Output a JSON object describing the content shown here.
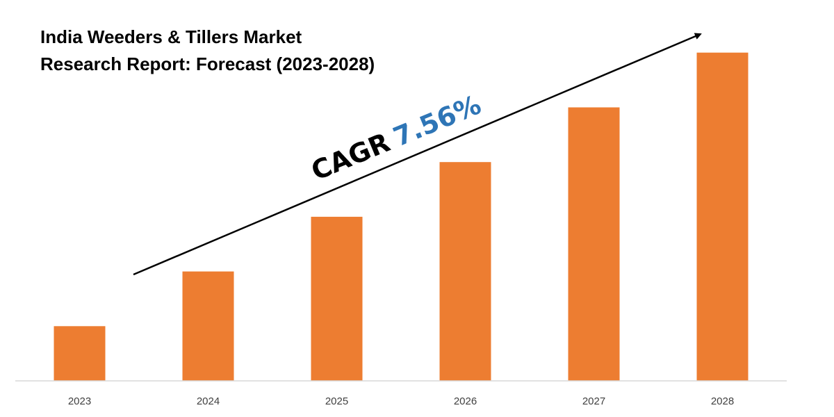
{
  "chart_data": {
    "type": "bar",
    "title_lines": [
      "India Weeders & Tillers Market",
      "Research Report: Forecast (2023-2028)"
    ],
    "categories": [
      "2023",
      "2024",
      "2025",
      "2026",
      "2027",
      "2028"
    ],
    "values": [
      1.0,
      2.0,
      3.0,
      4.0,
      5.0,
      6.0
    ],
    "ylim": [
      0,
      6.2
    ],
    "annotation": {
      "label": "CAGR",
      "value": "7.56%"
    },
    "grid": false,
    "legend": "none",
    "colors": {
      "bar": "#ED7D31",
      "axis": "#D9D9D9",
      "arrow": "#000000",
      "cagr_label": "#000000",
      "cagr_value": "#2E75B6"
    }
  }
}
